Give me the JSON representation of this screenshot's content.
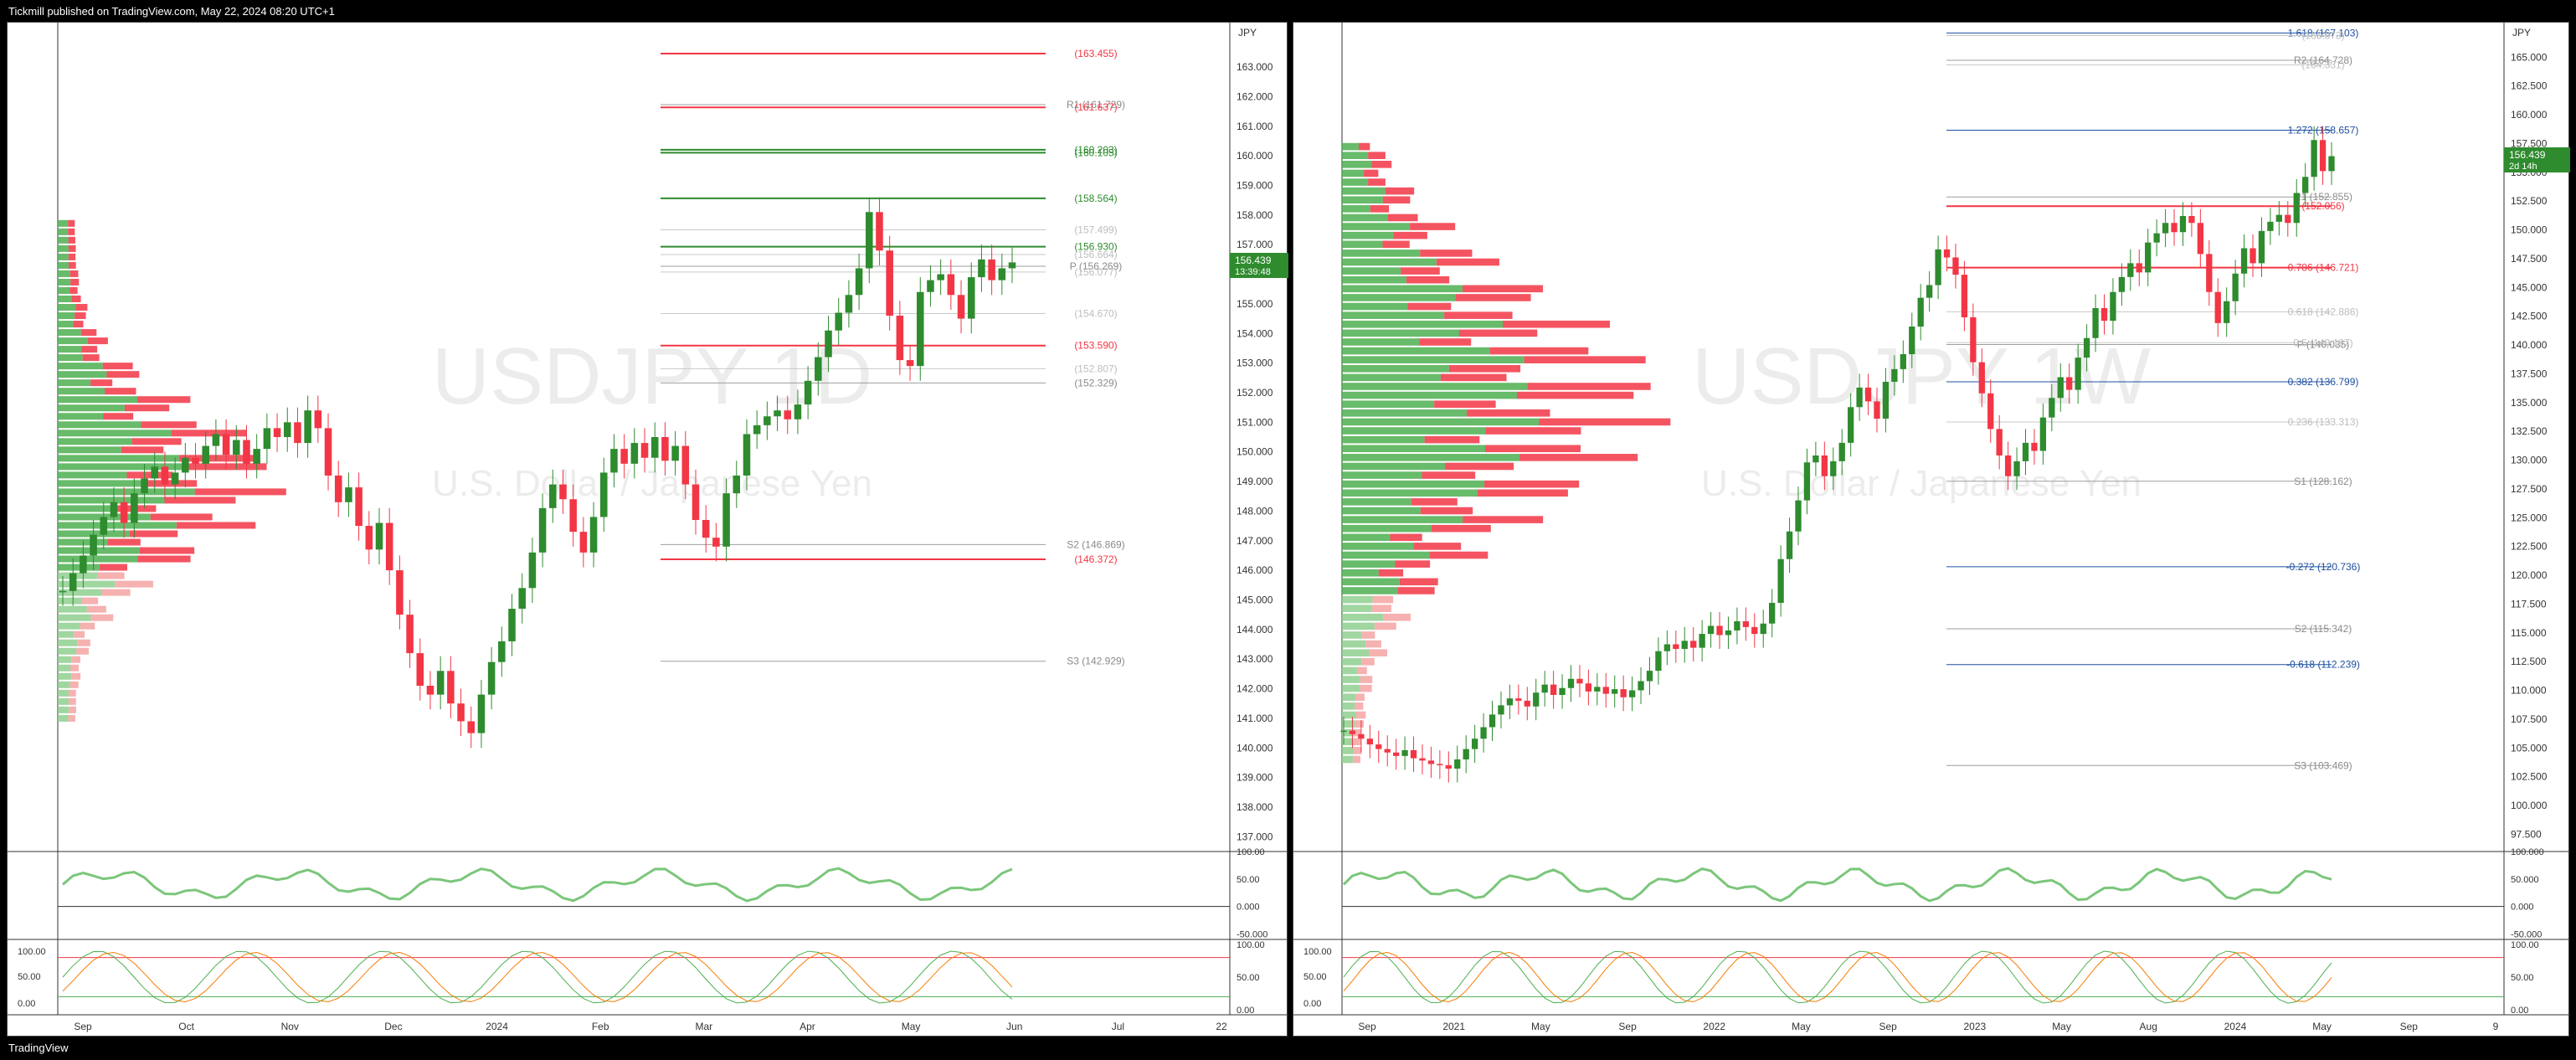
{
  "header": {
    "published": "Tickmill published on TradingView.com, May 22, 2024 08:20 UTC+1"
  },
  "footer": {
    "logo": "TradingView"
  },
  "colors": {
    "up": "#2e8b2e",
    "down": "#f23645",
    "grid": "#f0f0f0",
    "pivot": "#9e9e9e",
    "fib": "#1e50a0",
    "orange": "#f7a21b",
    "magenta": "#e040fb"
  },
  "chart_data": [
    {
      "type": "candlestick",
      "symbol": "USDJPY",
      "interval": "1D",
      "watermark": "USDJPY 1D",
      "description": "U.S. Dollar / Japanese Yen",
      "currency": "JPY",
      "ylim": [
        136.5,
        164.5
      ],
      "price_ticks": [
        "163.000",
        "162.000",
        "161.000",
        "160.000",
        "159.000",
        "158.000",
        "157.000",
        "156.000",
        "155.000",
        "154.000",
        "153.000",
        "152.000",
        "151.000",
        "150.000",
        "149.000",
        "148.000",
        "147.000",
        "146.000",
        "145.000",
        "144.000",
        "143.000",
        "142.000",
        "141.000",
        "140.000",
        "139.000",
        "138.000",
        "137.000"
      ],
      "x_ticks": [
        "Sep",
        "Oct",
        "Nov",
        "Dec",
        "2024",
        "Feb",
        "Mar",
        "Apr",
        "May",
        "Jun",
        "Jul",
        "22"
      ],
      "last_price": {
        "value": "156.439",
        "countdown": "13:39:48"
      },
      "levels": [
        {
          "label": "(163.455)",
          "value": 163.455,
          "kind": "red"
        },
        {
          "label": "R1 (161.729)",
          "value": 161.729,
          "kind": "pivot"
        },
        {
          "label": "(161.637)",
          "value": 161.637,
          "kind": "red"
        },
        {
          "label": "(160.203)",
          "value": 160.203,
          "kind": "green"
        },
        {
          "label": "(160.105)",
          "value": 160.105,
          "kind": "green"
        },
        {
          "label": "(158.564)",
          "value": 158.564,
          "kind": "green"
        },
        {
          "label": "(157.499)",
          "value": 157.499,
          "kind": "faint"
        },
        {
          "label": "(156.930)",
          "value": 156.93,
          "kind": "green"
        },
        {
          "label": "(156.664)",
          "value": 156.664,
          "kind": "faint"
        },
        {
          "label": "P (156.269)",
          "value": 156.269,
          "kind": "pivot"
        },
        {
          "label": "(156.077)",
          "value": 156.077,
          "kind": "faint"
        },
        {
          "label": "(154.670)",
          "value": 154.67,
          "kind": "faint"
        },
        {
          "label": "(153.590)",
          "value": 153.59,
          "kind": "red"
        },
        {
          "label": "(152.807)",
          "value": 152.807,
          "kind": "faint"
        },
        {
          "label": "(152.329)",
          "value": 152.329,
          "kind": "pivot"
        },
        {
          "label": "S2 (146.869)",
          "value": 146.869,
          "kind": "pivot"
        },
        {
          "label": "(146.372)",
          "value": 146.372,
          "kind": "red"
        },
        {
          "label": "S3 (142.929)",
          "value": 142.929,
          "kind": "pivot"
        }
      ],
      "rsi_ticks": [
        "100.00",
        "50.00",
        "0.000",
        "-50.000"
      ],
      "stoch_ticks": [
        "100.00",
        "50.00",
        "0.00"
      ],
      "series": [
        {
          "name": "",
          "values": [
            145.3,
            145.9,
            146.5,
            147.2,
            147.8,
            148.3,
            147.6,
            148.6,
            149.1,
            149.5,
            148.9,
            149.3,
            149.8,
            149.6,
            150.2,
            150.6,
            149.9,
            150.4,
            149.6,
            150.1,
            150.8,
            150.5,
            151.0,
            150.3,
            151.4,
            150.8,
            149.2,
            148.3,
            148.8,
            147.5,
            146.7,
            147.6,
            146.0,
            144.5,
            143.2,
            142.1,
            141.8,
            142.6,
            141.5,
            140.9,
            140.5,
            141.8,
            142.9,
            143.6,
            144.7,
            145.4,
            146.6,
            148.1,
            148.9,
            148.4,
            147.3,
            146.6,
            147.8,
            149.3,
            150.1,
            149.6,
            150.3,
            149.8,
            150.5,
            149.7,
            150.2,
            148.9,
            147.7,
            147.1,
            146.8,
            148.6,
            149.2,
            150.6,
            150.9,
            151.2,
            151.4,
            151.1,
            151.6,
            152.4,
            153.2,
            154.1,
            154.7,
            155.3,
            156.2,
            158.1,
            156.8,
            154.6,
            153.1,
            152.9,
            155.4,
            155.8,
            156.0,
            155.3,
            154.5,
            155.9,
            156.5,
            155.8,
            156.2,
            156.4
          ]
        }
      ]
    },
    {
      "type": "candlestick",
      "symbol": "USDJPY",
      "interval": "1W",
      "watermark": "USDJPY 1W",
      "description": "U.S. Dollar / Japanese Yen",
      "currency": "JPY",
      "ylim": [
        96,
        168
      ],
      "price_ticks": [
        "165.000",
        "162.500",
        "160.000",
        "157.500",
        "155.000",
        "152.500",
        "150.000",
        "147.500",
        "145.000",
        "142.500",
        "140.000",
        "137.500",
        "135.000",
        "132.500",
        "130.000",
        "127.500",
        "125.000",
        "122.500",
        "120.000",
        "117.500",
        "115.000",
        "112.500",
        "110.000",
        "107.500",
        "105.000",
        "102.500",
        "100.000",
        "97.500"
      ],
      "x_ticks": [
        "Sep",
        "2021",
        "May",
        "Sep",
        "2022",
        "May",
        "Sep",
        "2023",
        "May",
        "Aug",
        "2024",
        "May",
        "Sep",
        "9"
      ],
      "last_price": {
        "value": "156.439",
        "countdown": "2d 14h"
      },
      "levels": [
        {
          "label": "1.618 (167.103)",
          "value": 167.103,
          "kind": "fib"
        },
        {
          "label": "(166.873)",
          "value": 166.873,
          "kind": "faint"
        },
        {
          "label": "R2 (164.728)",
          "value": 164.728,
          "kind": "pivot"
        },
        {
          "label": "(164.331)",
          "value": 164.331,
          "kind": "faint"
        },
        {
          "label": "1.272 (158.657)",
          "value": 158.657,
          "kind": "fib"
        },
        {
          "label": "R1 (152.855)",
          "value": 152.855,
          "kind": "pivot"
        },
        {
          "label": "(152.056)",
          "value": 152.056,
          "kind": "red"
        },
        {
          "label": "0.786 (146.721)",
          "value": 146.721,
          "kind": "red"
        },
        {
          "label": "0.618 (142.886)",
          "value": 142.886,
          "kind": "faint"
        },
        {
          "label": "P (140.035)",
          "value": 140.035,
          "kind": "pivot"
        },
        {
          "label": "0.5 (140.197)",
          "value": 140.197,
          "kind": "faint"
        },
        {
          "label": "0.382 (136.799)",
          "value": 136.799,
          "kind": "fib"
        },
        {
          "label": "0.236 (133.313)",
          "value": 133.313,
          "kind": "faint"
        },
        {
          "label": "S1 (128.162)",
          "value": 128.162,
          "kind": "pivot"
        },
        {
          "label": "-0.272 (120.736)",
          "value": 120.736,
          "kind": "fib"
        },
        {
          "label": "S2 (115.342)",
          "value": 115.342,
          "kind": "pivot"
        },
        {
          "label": "-0.618 (112.239)",
          "value": 112.239,
          "kind": "fib"
        },
        {
          "label": "S3 (103.469)",
          "value": 103.469,
          "kind": "pivot"
        }
      ],
      "rsi_ticks": [
        "100.000",
        "50.000",
        "0.000",
        "-50.000"
      ],
      "stoch_ticks": [
        "100.00",
        "50.00",
        "0.00"
      ],
      "series": [
        {
          "name": "",
          "values": [
            106.5,
            106.2,
            105.8,
            105.3,
            104.9,
            104.6,
            104.3,
            104.8,
            104.1,
            103.9,
            103.6,
            103.5,
            103.2,
            104.0,
            104.9,
            105.8,
            106.8,
            107.9,
            108.7,
            109.3,
            109.1,
            108.6,
            109.8,
            110.5,
            109.6,
            110.2,
            111.0,
            110.6,
            109.9,
            110.3,
            109.7,
            110.1,
            109.4,
            110.0,
            110.8,
            111.7,
            113.4,
            114.0,
            113.6,
            114.3,
            113.7,
            114.9,
            115.6,
            114.8,
            115.2,
            116.0,
            115.5,
            114.9,
            115.8,
            117.6,
            121.4,
            123.8,
            126.5,
            129.8,
            130.4,
            128.6,
            129.9,
            131.5,
            134.6,
            136.3,
            135.1,
            133.6,
            136.8,
            137.9,
            139.2,
            141.6,
            144.1,
            145.2,
            148.3,
            147.6,
            146.1,
            142.4,
            138.5,
            135.8,
            132.7,
            130.4,
            128.6,
            129.9,
            131.5,
            130.8,
            133.7,
            135.4,
            137.2,
            136.1,
            138.9,
            140.6,
            143.2,
            142.1,
            144.6,
            145.9,
            147.1,
            146.3,
            148.9,
            149.7,
            150.6,
            149.8,
            151.2,
            150.6,
            147.9,
            144.6,
            141.9,
            143.8,
            146.2,
            148.4,
            147.1,
            149.9,
            150.7,
            151.3,
            150.6,
            153.2,
            154.6,
            157.8,
            155.1,
            156.4
          ]
        }
      ]
    }
  ]
}
